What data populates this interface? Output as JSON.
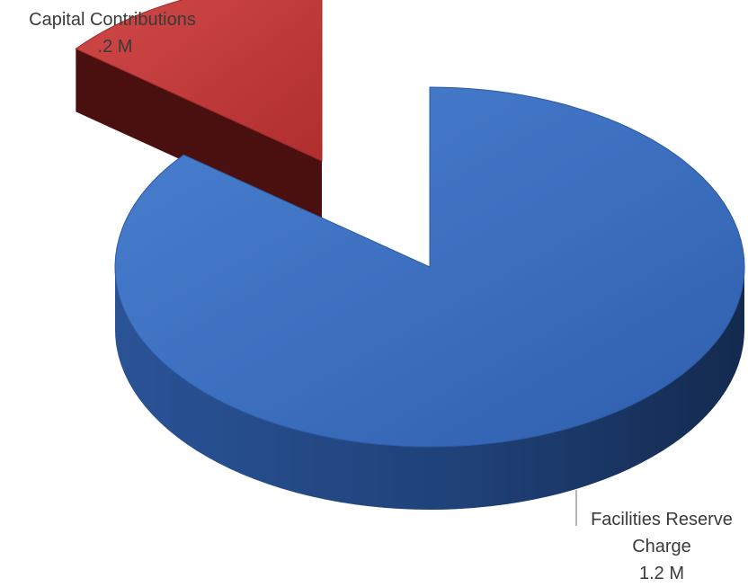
{
  "chart_data": {
    "type": "pie",
    "style": "3d-exploded",
    "slices": [
      {
        "label": "Capital Contributions",
        "value_text": ".2 M",
        "value": 0.2,
        "color": "#c0393b",
        "exploded": true
      },
      {
        "label": "Facilities Reserve Charge",
        "value_text": "1.2 M",
        "value": 1.2,
        "color": "#3b6fc2",
        "exploded": false
      }
    ]
  }
}
